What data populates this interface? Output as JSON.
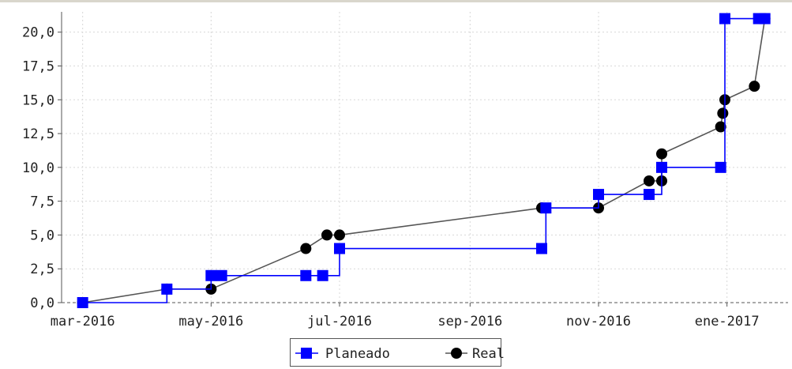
{
  "chart_data": {
    "type": "line",
    "title": "",
    "xlabel": "",
    "ylabel": "",
    "ylim": [
      0,
      21.5
    ],
    "xlim": [
      "2016-02-20",
      "2017-01-30"
    ],
    "grid": true,
    "legend_position": "bottom",
    "y_ticks": [
      "0,0",
      "2,5",
      "5,0",
      "7,5",
      "10,0",
      "12,5",
      "15,0",
      "17,5",
      "20,0"
    ],
    "x_ticks": [
      {
        "date": "2016-03-01",
        "label": "mar-2016"
      },
      {
        "date": "2016-05-01",
        "label": "may-2016"
      },
      {
        "date": "2016-07-01",
        "label": "jul-2016"
      },
      {
        "date": "2016-09-01",
        "label": "sep-2016"
      },
      {
        "date": "2016-11-01",
        "label": "nov-2016"
      },
      {
        "date": "2017-01-01",
        "label": "ene-2017"
      }
    ],
    "series": [
      {
        "name": "Planeado",
        "color": "#0000ff",
        "marker": "square",
        "step": true,
        "points": [
          {
            "x": "2016-03-01",
            "y": 0
          },
          {
            "x": "2016-04-10",
            "y": 1
          },
          {
            "x": "2016-05-01",
            "y": 2
          },
          {
            "x": "2016-05-06",
            "y": 2
          },
          {
            "x": "2016-06-15",
            "y": 2
          },
          {
            "x": "2016-06-23",
            "y": 2
          },
          {
            "x": "2016-07-01",
            "y": 4
          },
          {
            "x": "2016-10-05",
            "y": 4
          },
          {
            "x": "2016-10-07",
            "y": 7
          },
          {
            "x": "2016-11-01",
            "y": 8
          },
          {
            "x": "2016-11-25",
            "y": 8
          },
          {
            "x": "2016-12-01",
            "y": 10
          },
          {
            "x": "2016-12-29",
            "y": 10
          },
          {
            "x": "2016-12-31",
            "y": 21
          },
          {
            "x": "2017-01-16",
            "y": 21
          },
          {
            "x": "2017-01-19",
            "y": 21
          }
        ]
      },
      {
        "name": "Real",
        "color": "#000000",
        "marker": "circle",
        "step": false,
        "points": [
          {
            "x": "2016-03-01",
            "y": 0
          },
          {
            "x": "2016-04-10",
            "y": 1
          },
          {
            "x": "2016-05-01",
            "y": 1
          },
          {
            "x": "2016-06-15",
            "y": 4
          },
          {
            "x": "2016-06-25",
            "y": 5
          },
          {
            "x": "2016-07-01",
            "y": 5
          },
          {
            "x": "2016-10-05",
            "y": 7
          },
          {
            "x": "2016-11-01",
            "y": 7
          },
          {
            "x": "2016-11-25",
            "y": 9
          },
          {
            "x": "2016-12-01",
            "y": 9
          },
          {
            "x": "2016-12-01",
            "y": 11
          },
          {
            "x": "2016-12-29",
            "y": 13
          },
          {
            "x": "2016-12-30",
            "y": 14
          },
          {
            "x": "2016-12-31",
            "y": 15
          },
          {
            "x": "2017-01-14",
            "y": 16
          },
          {
            "x": "2017-01-19",
            "y": 21
          }
        ]
      }
    ]
  }
}
